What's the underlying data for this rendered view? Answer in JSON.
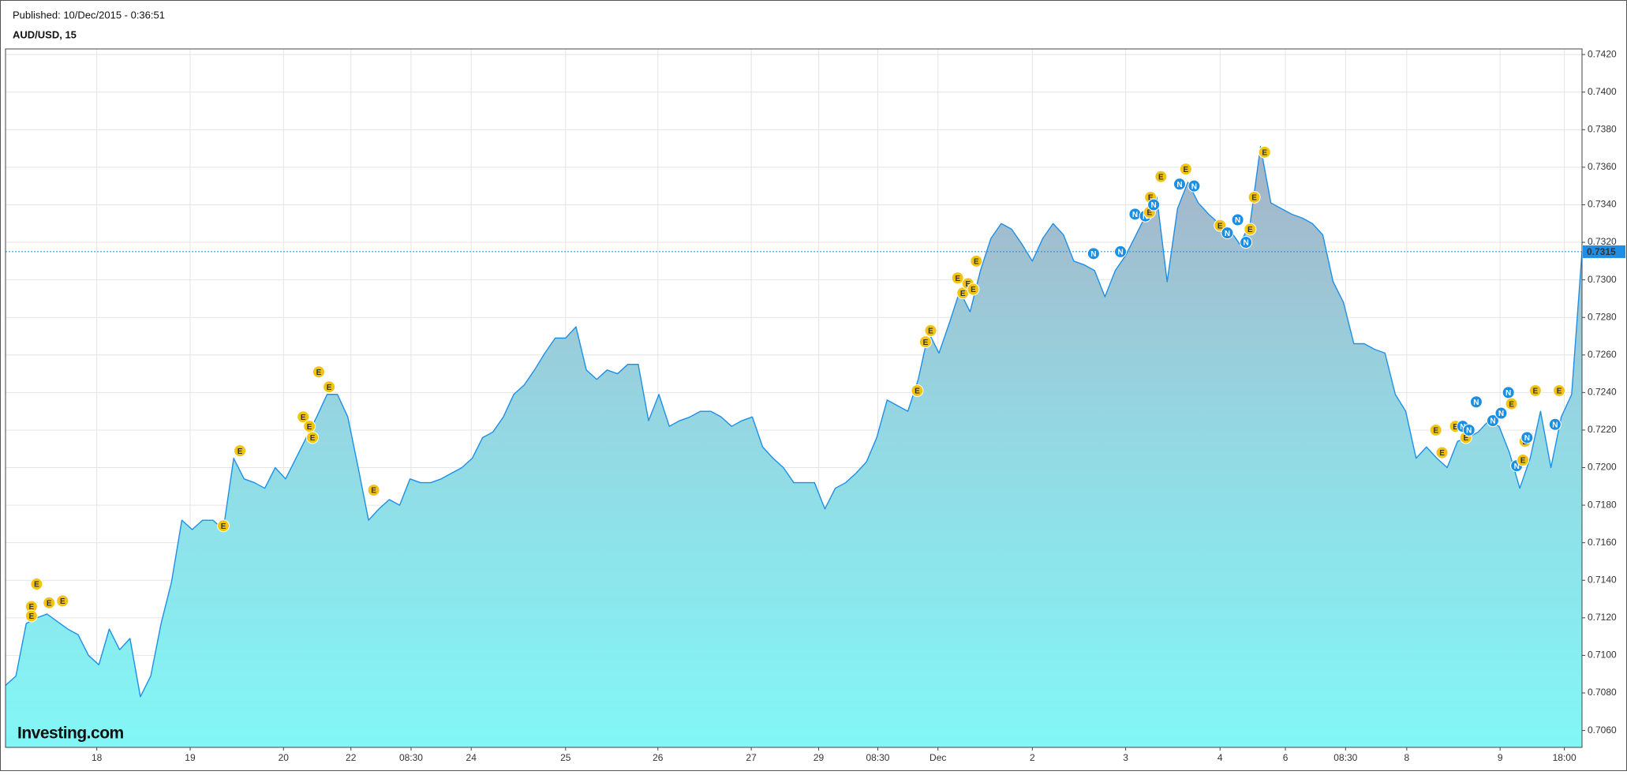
{
  "chart_data": {
    "type": "area",
    "published": "Published: 10/Dec/2015 - 0:36:51",
    "title": "AUD/USD, 15",
    "logo": "Investing.com",
    "color": "#1e8fe6",
    "grid": true,
    "values": [
      0.7084,
      0.7089,
      0.7117,
      0.712,
      0.7122,
      0.7118,
      0.7114,
      0.7111,
      0.71,
      0.7095,
      0.7114,
      0.7103,
      0.7109,
      0.7078,
      0.7089,
      0.7117,
      0.7139,
      0.7172,
      0.7167,
      0.7172,
      0.7172,
      0.7167,
      0.7205,
      0.7194,
      0.7192,
      0.7189,
      0.72,
      0.7194,
      0.7205,
      0.7216,
      0.7227,
      0.7239,
      0.7239,
      0.7227,
      0.72,
      0.7172,
      0.7178,
      0.7183,
      0.718,
      0.7194,
      0.7192,
      0.7192,
      0.7194,
      0.7197,
      0.72,
      0.7205,
      0.7216,
      0.7219,
      0.7227,
      0.7239,
      0.7244,
      0.7252,
      0.7261,
      0.7269,
      0.7269,
      0.7275,
      0.7252,
      0.7247,
      0.7252,
      0.725,
      0.7255,
      0.7255,
      0.7225,
      0.7239,
      0.7222,
      0.7225,
      0.7227,
      0.723,
      0.723,
      0.7227,
      0.7222,
      0.7225,
      0.7227,
      0.7211,
      0.7205,
      0.72,
      0.7192,
      0.7192,
      0.7192,
      0.7178,
      0.7189,
      0.7192,
      0.7197,
      0.7203,
      0.7216,
      0.7236,
      0.7233,
      0.723,
      0.7247,
      0.7272,
      0.7261,
      0.7277,
      0.7294,
      0.7283,
      0.7305,
      0.7322,
      0.733,
      0.7327,
      0.7319,
      0.731,
      0.7322,
      0.733,
      0.7324,
      0.731,
      0.7308,
      0.7305,
      0.7291,
      0.7305,
      0.7313,
      0.7324,
      0.7335,
      0.7344,
      0.7299,
      0.7338,
      0.7352,
      0.7341,
      0.7335,
      0.733,
      0.7327,
      0.7319,
      0.733,
      0.7371,
      0.7341,
      0.7338,
      0.7335,
      0.7333,
      0.733,
      0.7324,
      0.7299,
      0.7288,
      0.7266,
      0.7266,
      0.7263,
      0.7261,
      0.7239,
      0.723,
      0.7205,
      0.7211,
      0.7205,
      0.72,
      0.7214,
      0.7216,
      0.7219,
      0.7225,
      0.7222,
      0.7208,
      0.7189,
      0.7205,
      0.723,
      0.72,
      0.7227,
      0.7239,
      0.7315
    ],
    "xlim": [
      0,
      152
    ],
    "xticks": [
      {
        "value": 8.8,
        "label": "18"
      },
      {
        "value": 17.8,
        "label": "19"
      },
      {
        "value": 26.8,
        "label": "20"
      },
      {
        "value": 33.3,
        "label": "22"
      },
      {
        "value": 39.1,
        "label": "08:30"
      },
      {
        "value": 44.9,
        "label": "24"
      },
      {
        "value": 54,
        "label": "25"
      },
      {
        "value": 62.9,
        "label": "26"
      },
      {
        "value": 71.9,
        "label": "27"
      },
      {
        "value": 78.4,
        "label": "29"
      },
      {
        "value": 84.1,
        "label": "08:30"
      },
      {
        "value": 89.9,
        "label": "Dec"
      },
      {
        "value": 99,
        "label": "2"
      },
      {
        "value": 108,
        "label": "3"
      },
      {
        "value": 117.1,
        "label": "4"
      },
      {
        "value": 123.4,
        "label": "6"
      },
      {
        "value": 129.2,
        "label": "08:30"
      },
      {
        "value": 135.1,
        "label": "8"
      },
      {
        "value": 144.1,
        "label": "9"
      },
      {
        "value": 150.3,
        "label": "18:00"
      }
    ],
    "ylim": [
      0.7051,
      0.7423
    ],
    "yticks": [
      {
        "value": 0.706,
        "label": "0.7060"
      },
      {
        "value": 0.708,
        "label": "0.7080"
      },
      {
        "value": 0.71,
        "label": "0.7100"
      },
      {
        "value": 0.712,
        "label": "0.7120"
      },
      {
        "value": 0.714,
        "label": "0.7140"
      },
      {
        "value": 0.716,
        "label": "0.7160"
      },
      {
        "value": 0.718,
        "label": "0.7180"
      },
      {
        "value": 0.72,
        "label": "0.7200"
      },
      {
        "value": 0.722,
        "label": "0.7220"
      },
      {
        "value": 0.724,
        "label": "0.7240"
      },
      {
        "value": 0.726,
        "label": "0.7260"
      },
      {
        "value": 0.728,
        "label": "0.7280"
      },
      {
        "value": 0.73,
        "label": "0.7300"
      },
      {
        "value": 0.732,
        "label": "0.7320"
      },
      {
        "value": 0.734,
        "label": "0.7340"
      },
      {
        "value": 0.736,
        "label": "0.7360"
      },
      {
        "value": 0.738,
        "label": "0.7380"
      },
      {
        "value": 0.74,
        "label": "0.7400"
      },
      {
        "value": 0.742,
        "label": "0.7420"
      }
    ],
    "last_value": {
      "value": 0.7315,
      "label": "0.7315"
    },
    "events": [
      {
        "x": 2.5,
        "y": 0.7126,
        "label": "E"
      },
      {
        "x": 3.0,
        "y": 0.7138,
        "label": "E"
      },
      {
        "x": 2.5,
        "y": 0.7121,
        "label": "E"
      },
      {
        "x": 4.2,
        "y": 0.7128,
        "label": "E"
      },
      {
        "x": 5.5,
        "y": 0.7129,
        "label": "E"
      },
      {
        "x": 21.0,
        "y": 0.7169,
        "label": "E"
      },
      {
        "x": 22.6,
        "y": 0.7209,
        "label": "E"
      },
      {
        "x": 28.7,
        "y": 0.7227,
        "label": "E"
      },
      {
        "x": 29.3,
        "y": 0.7222,
        "label": "E"
      },
      {
        "x": 29.6,
        "y": 0.7216,
        "label": "E"
      },
      {
        "x": 30.2,
        "y": 0.7251,
        "label": "E"
      },
      {
        "x": 31.2,
        "y": 0.7243,
        "label": "E"
      },
      {
        "x": 35.5,
        "y": 0.7188,
        "label": "E"
      },
      {
        "x": 87.9,
        "y": 0.7241,
        "label": "E"
      },
      {
        "x": 88.7,
        "y": 0.7267,
        "label": "E"
      },
      {
        "x": 89.2,
        "y": 0.7273,
        "label": "E"
      },
      {
        "x": 91.8,
        "y": 0.7301,
        "label": "E"
      },
      {
        "x": 92.3,
        "y": 0.7293,
        "label": "E"
      },
      {
        "x": 92.8,
        "y": 0.7298,
        "label": "E"
      },
      {
        "x": 93.3,
        "y": 0.7295,
        "label": "E"
      },
      {
        "x": 93.6,
        "y": 0.731,
        "label": "E"
      },
      {
        "x": 104.9,
        "y": 0.7314,
        "label": "N"
      },
      {
        "x": 107.5,
        "y": 0.7315,
        "label": "N"
      },
      {
        "x": 108.9,
        "y": 0.7335,
        "label": "N"
      },
      {
        "x": 109.9,
        "y": 0.7334,
        "label": "N"
      },
      {
        "x": 110.3,
        "y": 0.7336,
        "label": "E"
      },
      {
        "x": 110.4,
        "y": 0.7344,
        "label": "E"
      },
      {
        "x": 110.7,
        "y": 0.734,
        "label": "N"
      },
      {
        "x": 111.4,
        "y": 0.7355,
        "label": "E"
      },
      {
        "x": 113.2,
        "y": 0.7351,
        "label": "N"
      },
      {
        "x": 113.8,
        "y": 0.7359,
        "label": "E"
      },
      {
        "x": 114.6,
        "y": 0.735,
        "label": "N"
      },
      {
        "x": 117.1,
        "y": 0.7329,
        "label": "E"
      },
      {
        "x": 117.8,
        "y": 0.7325,
        "label": "N"
      },
      {
        "x": 118.8,
        "y": 0.7332,
        "label": "N"
      },
      {
        "x": 119.6,
        "y": 0.732,
        "label": "N"
      },
      {
        "x": 120.0,
        "y": 0.7327,
        "label": "E"
      },
      {
        "x": 120.4,
        "y": 0.7344,
        "label": "E"
      },
      {
        "x": 121.4,
        "y": 0.7368,
        "label": "E"
      },
      {
        "x": 137.9,
        "y": 0.722,
        "label": "E"
      },
      {
        "x": 138.5,
        "y": 0.7208,
        "label": "E"
      },
      {
        "x": 139.8,
        "y": 0.7222,
        "label": "E"
      },
      {
        "x": 140.5,
        "y": 0.7222,
        "label": "N"
      },
      {
        "x": 140.8,
        "y": 0.7216,
        "label": "E"
      },
      {
        "x": 141.1,
        "y": 0.722,
        "label": "N"
      },
      {
        "x": 141.8,
        "y": 0.7235,
        "label": "N"
      },
      {
        "x": 143.4,
        "y": 0.7225,
        "label": "N"
      },
      {
        "x": 144.2,
        "y": 0.7229,
        "label": "N"
      },
      {
        "x": 144.9,
        "y": 0.724,
        "label": "N"
      },
      {
        "x": 145.2,
        "y": 0.7234,
        "label": "E"
      },
      {
        "x": 145.7,
        "y": 0.7201,
        "label": "N"
      },
      {
        "x": 146.3,
        "y": 0.7204,
        "label": "E"
      },
      {
        "x": 146.5,
        "y": 0.7214,
        "label": "E"
      },
      {
        "x": 146.7,
        "y": 0.7216,
        "label": "N"
      },
      {
        "x": 147.5,
        "y": 0.7241,
        "label": "E"
      },
      {
        "x": 149.4,
        "y": 0.7223,
        "label": "N"
      },
      {
        "x": 149.8,
        "y": 0.7241,
        "label": "E"
      }
    ]
  }
}
